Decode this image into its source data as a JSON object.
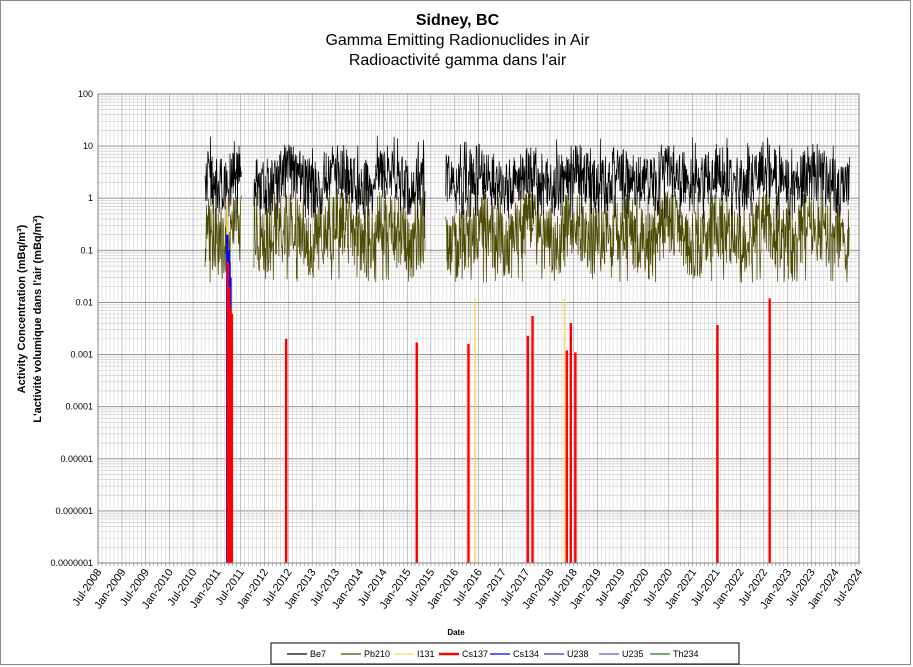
{
  "chart_data": {
    "type": "line",
    "title": "Sidney, BC",
    "subtitle": "Gamma Emitting Radionuclides in Air",
    "subtitle_fr": "Radioactivité gamma dans l'air",
    "xlabel": "Date",
    "ylabel": "Activity Concentration  (mBq/m³)",
    "ylabel_fr": "L'activité volumique dans l'air (mBq/m³)",
    "y_scale": "log",
    "ylim": [
      1e-07,
      100
    ],
    "xlim": [
      "2008-07-01",
      "2024-07-01"
    ],
    "grid": true,
    "legend_position": "bottom",
    "y_ticks": [
      "100",
      "10",
      "1",
      "0.1",
      "0.01",
      "0.001",
      "0.0001",
      "0.00001",
      "0.000001",
      "0.0000001"
    ],
    "x_ticks": [
      "Jul-2008",
      "Jan-2009",
      "Jul-2009",
      "Jan-2010",
      "Jul-2010",
      "Jan-2011",
      "Jul-2011",
      "Jan-2012",
      "Jul-2012",
      "Jan-2013",
      "Jul-2013",
      "Jan-2014",
      "Jul-2014",
      "Jan-2015",
      "Jul-2015",
      "Jan-2016",
      "Jul-2016",
      "Jan-2017",
      "Jul-2017",
      "Jan-2018",
      "Jul-2018",
      "Jan-2019",
      "Jul-2019",
      "Jan-2020",
      "Jul-2020",
      "Jan-2021",
      "Jul-2021",
      "Jan-2022",
      "Jul-2022",
      "Jan-2023",
      "Jul-2023",
      "Jan-2024",
      "Jul-2024"
    ],
    "gaps": [
      [
        "2011-07-10",
        "2011-10-10"
      ],
      [
        "2015-05-20",
        "2015-10-20"
      ]
    ],
    "series": [
      {
        "name": "Be7",
        "color": "#000000",
        "kind": "continuous",
        "start": "2010-10-01",
        "end": "2024-04-20",
        "typical_range": [
          0.5,
          8
        ],
        "peak": 16
      },
      {
        "name": "Pb210",
        "color": "#4a4a00",
        "kind": "continuous",
        "start": "2010-10-01",
        "end": "2024-04-20",
        "typical_range": [
          0.03,
          1.0
        ],
        "peak": 1.5
      },
      {
        "name": "I131",
        "color": "#ffd966",
        "kind": "spikes",
        "points": [
          [
            "2011-03-18",
            1.0
          ],
          [
            "2011-03-25",
            0.5
          ],
          [
            "2016-06-05",
            0.012
          ],
          [
            "2018-04-20",
            0.012
          ]
        ]
      },
      {
        "name": "Cs137",
        "color": "#ff0000",
        "kind": "spikes",
        "points": [
          [
            "2011-03-25",
            0.06
          ],
          [
            "2011-04-05",
            0.02
          ],
          [
            "2011-04-15",
            0.008
          ],
          [
            "2011-04-25",
            0.006
          ],
          [
            "2012-06-15",
            0.002
          ],
          [
            "2015-03-15",
            0.0017
          ],
          [
            "2016-04-15",
            0.0016
          ],
          [
            "2017-07-15",
            0.0023
          ],
          [
            "2017-08-20",
            0.0055
          ],
          [
            "2018-05-10",
            0.0012
          ],
          [
            "2018-06-10",
            0.004
          ],
          [
            "2018-07-15",
            0.0011
          ],
          [
            "2021-07-10",
            0.0037
          ],
          [
            "2022-08-15",
            0.012
          ]
        ]
      },
      {
        "name": "Cs134",
        "color": "#0000ff",
        "kind": "spikes",
        "points": [
          [
            "2011-03-20",
            0.2
          ],
          [
            "2011-04-01",
            0.1
          ],
          [
            "2011-04-08",
            0.06
          ],
          [
            "2011-04-15",
            0.03
          ]
        ]
      },
      {
        "name": "U238",
        "color": "#3a3aa6",
        "kind": "spikes",
        "points": []
      },
      {
        "name": "U235",
        "color": "#5a5ad0",
        "kind": "spikes",
        "points": []
      },
      {
        "name": "Th234",
        "color": "#1a7a1a",
        "kind": "spikes",
        "points": []
      }
    ]
  }
}
